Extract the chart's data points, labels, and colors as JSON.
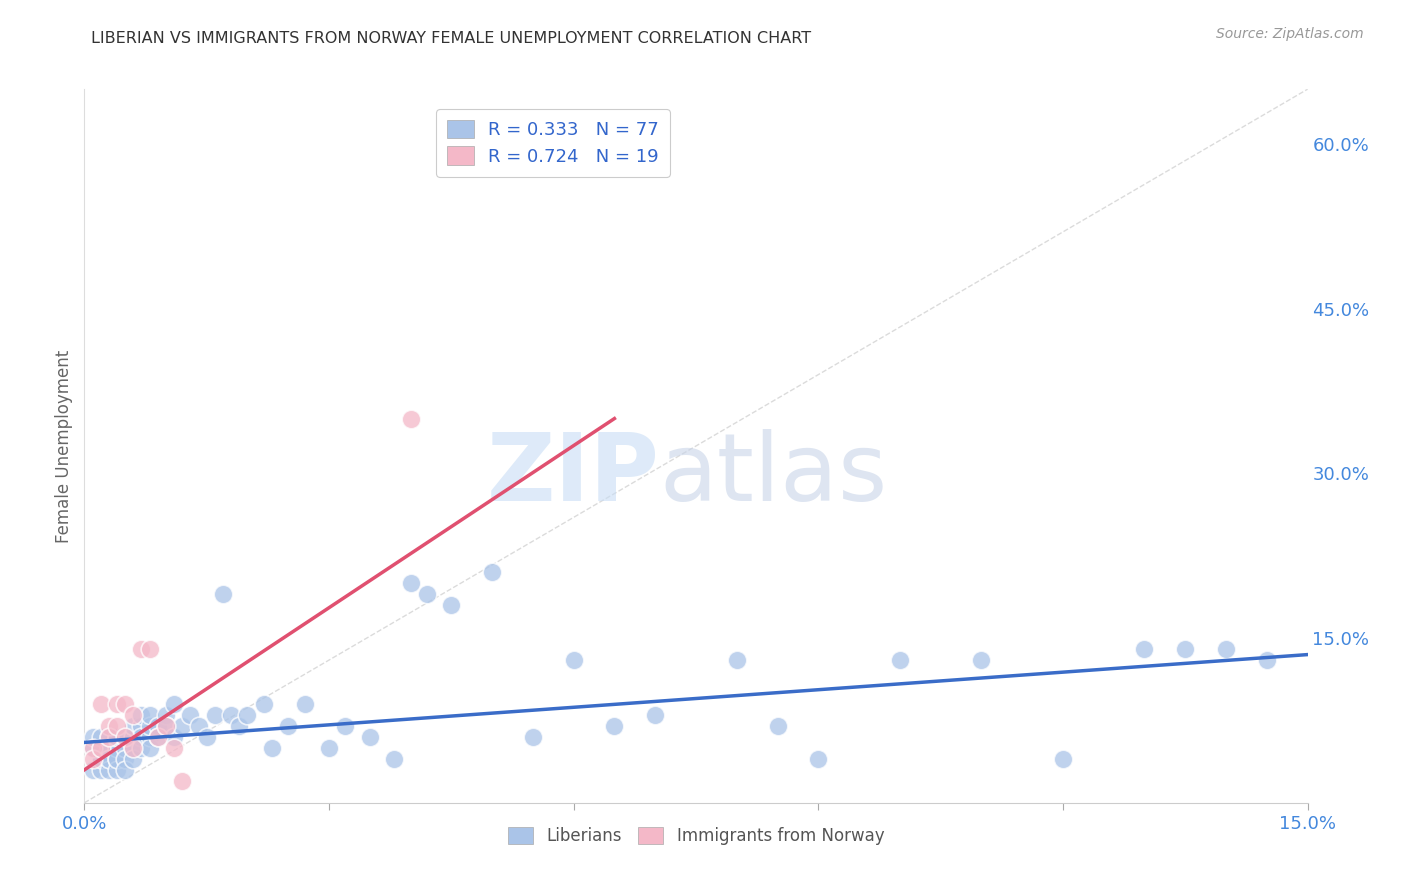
{
  "title": "LIBERIAN VS IMMIGRANTS FROM NORWAY FEMALE UNEMPLOYMENT CORRELATION CHART",
  "source": "Source: ZipAtlas.com",
  "ylabel": "Female Unemployment",
  "xlim": [
    0.0,
    0.15
  ],
  "ylim": [
    0.0,
    0.65
  ],
  "grid_color": "#d0d0d0",
  "background_color": "#ffffff",
  "diagonal_color": "#cccccc",
  "liberian_color": "#aac4e8",
  "norway_color": "#f4b8c8",
  "liberian_line_color": "#3a6cc8",
  "norway_line_color": "#e05070",
  "liberian_R": 0.333,
  "liberian_N": 77,
  "norway_R": 0.724,
  "norway_N": 19,
  "liberian_x": [
    0.001,
    0.001,
    0.001,
    0.002,
    0.002,
    0.002,
    0.002,
    0.002,
    0.003,
    0.003,
    0.003,
    0.003,
    0.003,
    0.003,
    0.004,
    0.004,
    0.004,
    0.004,
    0.004,
    0.004,
    0.005,
    0.005,
    0.005,
    0.005,
    0.006,
    0.006,
    0.006,
    0.006,
    0.007,
    0.007,
    0.007,
    0.007,
    0.008,
    0.008,
    0.008,
    0.008,
    0.009,
    0.009,
    0.01,
    0.01,
    0.011,
    0.011,
    0.012,
    0.013,
    0.014,
    0.015,
    0.016,
    0.017,
    0.018,
    0.019,
    0.02,
    0.022,
    0.023,
    0.025,
    0.027,
    0.03,
    0.032,
    0.035,
    0.038,
    0.04,
    0.042,
    0.045,
    0.05,
    0.055,
    0.06,
    0.065,
    0.07,
    0.08,
    0.085,
    0.09,
    0.1,
    0.11,
    0.12,
    0.13,
    0.135,
    0.14,
    0.145
  ],
  "liberian_y": [
    0.03,
    0.05,
    0.06,
    0.04,
    0.05,
    0.06,
    0.03,
    0.04,
    0.05,
    0.04,
    0.06,
    0.03,
    0.05,
    0.04,
    0.06,
    0.04,
    0.05,
    0.03,
    0.06,
    0.04,
    0.05,
    0.06,
    0.04,
    0.03,
    0.06,
    0.05,
    0.07,
    0.04,
    0.07,
    0.06,
    0.05,
    0.08,
    0.06,
    0.07,
    0.05,
    0.08,
    0.07,
    0.06,
    0.08,
    0.07,
    0.09,
    0.06,
    0.07,
    0.08,
    0.07,
    0.06,
    0.08,
    0.19,
    0.08,
    0.07,
    0.08,
    0.09,
    0.05,
    0.07,
    0.09,
    0.05,
    0.07,
    0.06,
    0.04,
    0.2,
    0.19,
    0.18,
    0.21,
    0.06,
    0.13,
    0.07,
    0.08,
    0.13,
    0.07,
    0.04,
    0.13,
    0.13,
    0.04,
    0.14,
    0.14,
    0.14,
    0.13
  ],
  "norway_x": [
    0.001,
    0.001,
    0.002,
    0.002,
    0.003,
    0.003,
    0.004,
    0.004,
    0.005,
    0.005,
    0.006,
    0.006,
    0.007,
    0.008,
    0.009,
    0.01,
    0.011,
    0.012,
    0.04
  ],
  "norway_y": [
    0.05,
    0.04,
    0.09,
    0.05,
    0.07,
    0.06,
    0.09,
    0.07,
    0.09,
    0.06,
    0.08,
    0.05,
    0.14,
    0.14,
    0.06,
    0.07,
    0.05,
    0.02,
    0.35
  ],
  "lib_line_x0": 0.0,
  "lib_line_y0": 0.055,
  "lib_line_x1": 0.15,
  "lib_line_y1": 0.135,
  "nor_line_x0": 0.0,
  "nor_line_y0": 0.03,
  "nor_line_x1": 0.065,
  "nor_line_y1": 0.35
}
